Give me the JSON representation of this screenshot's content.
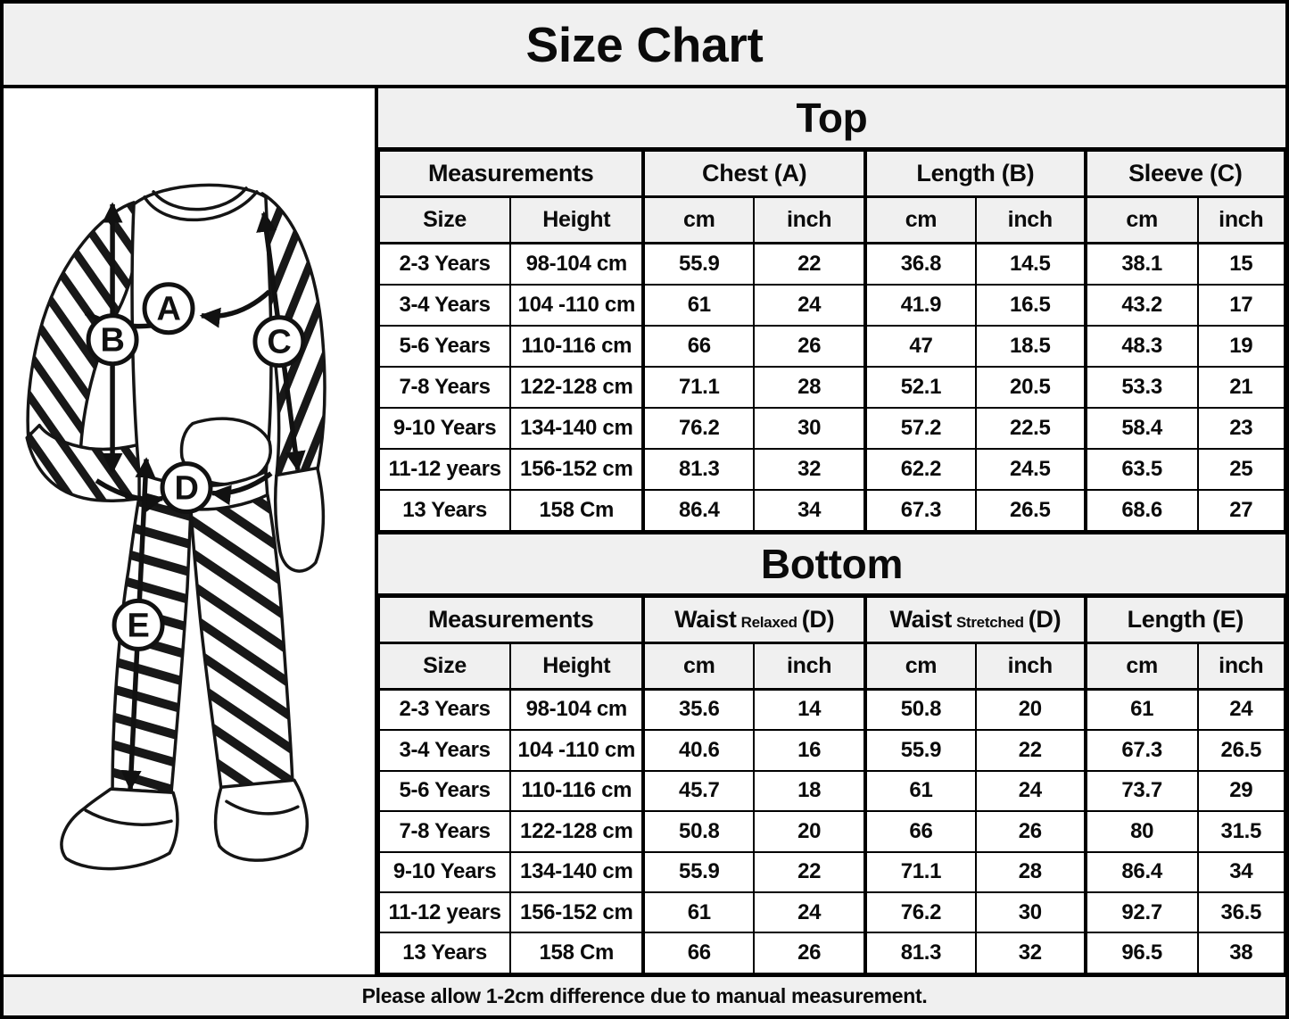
{
  "title": "Size Chart",
  "figure": {
    "markers": [
      "A",
      "B",
      "C",
      "D",
      "E"
    ]
  },
  "top_table": {
    "section_title": "Top",
    "measurements_label": "Measurements",
    "chest_label": "Chest (A)",
    "length_label": "Length (B)",
    "sleeve_label": "Sleeve (C)",
    "sub_headers": [
      "Size",
      "Height",
      "cm",
      "inch",
      "cm",
      "inch",
      "cm",
      "inch"
    ],
    "rows": [
      [
        "2-3 Years",
        "98-104 cm",
        "55.9",
        "22",
        "36.8",
        "14.5",
        "38.1",
        "15"
      ],
      [
        "3-4 Years",
        "104 -110 cm",
        "61",
        "24",
        "41.9",
        "16.5",
        "43.2",
        "17"
      ],
      [
        "5-6 Years",
        "110-116 cm",
        "66",
        "26",
        "47",
        "18.5",
        "48.3",
        "19"
      ],
      [
        "7-8 Years",
        "122-128 cm",
        "71.1",
        "28",
        "52.1",
        "20.5",
        "53.3",
        "21"
      ],
      [
        "9-10 Years",
        "134-140 cm",
        "76.2",
        "30",
        "57.2",
        "22.5",
        "58.4",
        "23"
      ],
      [
        "11-12 years",
        "156-152 cm",
        "81.3",
        "32",
        "62.2",
        "24.5",
        "63.5",
        "25"
      ],
      [
        "13 Years",
        "158 Cm",
        "86.4",
        "34",
        "67.3",
        "26.5",
        "68.6",
        "27"
      ]
    ]
  },
  "bottom_table": {
    "section_title": "Bottom",
    "measurements_label": "Measurements",
    "waist_relaxed": {
      "main": "Waist",
      "sub": "Relaxed",
      "suffix": "(D)"
    },
    "waist_stretched": {
      "main": "Waist",
      "sub": "Stretched",
      "suffix": "(D)"
    },
    "length_label": "Length (E)",
    "sub_headers": [
      "Size",
      "Height",
      "cm",
      "inch",
      "cm",
      "inch",
      "cm",
      "inch"
    ],
    "rows": [
      [
        "2-3 Years",
        "98-104 cm",
        "35.6",
        "14",
        "50.8",
        "20",
        "61",
        "24"
      ],
      [
        "3-4 Years",
        "104 -110 cm",
        "40.6",
        "16",
        "55.9",
        "22",
        "67.3",
        "26.5"
      ],
      [
        "5-6 Years",
        "110-116 cm",
        "45.7",
        "18",
        "61",
        "24",
        "73.7",
        "29"
      ],
      [
        "7-8 Years",
        "122-128 cm",
        "50.8",
        "20",
        "66",
        "26",
        "80",
        "31.5"
      ],
      [
        "9-10 Years",
        "134-140 cm",
        "55.9",
        "22",
        "71.1",
        "28",
        "86.4",
        "34"
      ],
      [
        "11-12 years",
        "156-152 cm",
        "61",
        "24",
        "76.2",
        "30",
        "92.7",
        "36.5"
      ],
      [
        "13 Years",
        "158 Cm",
        "66",
        "26",
        "81.3",
        "32",
        "96.5",
        "38"
      ]
    ]
  },
  "footer": "Please allow 1-2cm difference due to manual measurement."
}
